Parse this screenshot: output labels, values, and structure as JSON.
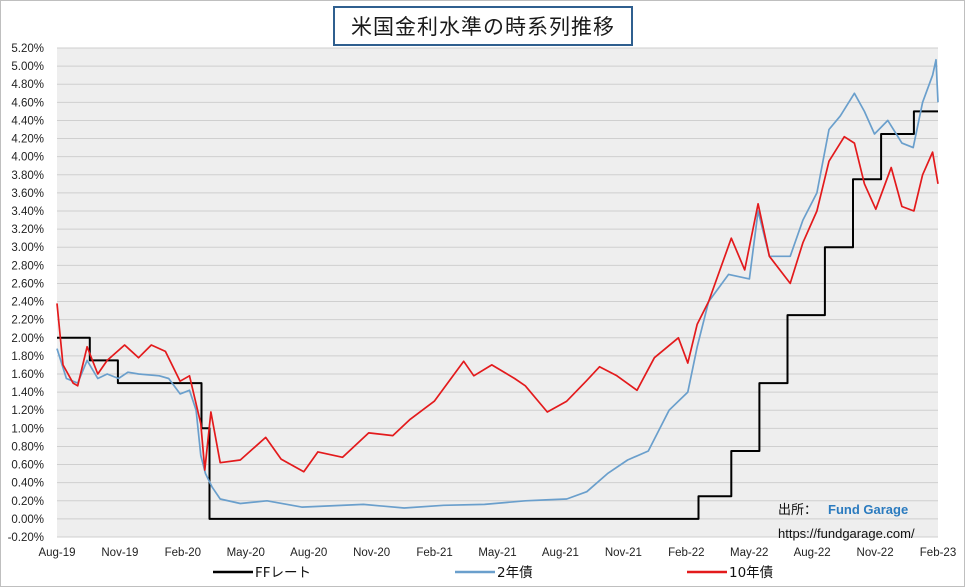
{
  "title": "米国金利水準の時系列推移",
  "source": {
    "prefix": "出所：",
    "name": "Fund Garage",
    "url": "https://fundgarage.com/"
  },
  "chart_data": {
    "type": "line",
    "title": "米国金利水準の時系列推移",
    "x_tick_labels": [
      "Aug-19",
      "Nov-19",
      "Feb-20",
      "May-20",
      "Aug-20",
      "Nov-20",
      "Feb-21",
      "May-21",
      "Aug-21",
      "Nov-21",
      "Feb-22",
      "May-22",
      "Aug-22",
      "Nov-22",
      "Feb-23"
    ],
    "y_tick_labels": [
      "-0.20%",
      "0.00%",
      "0.20%",
      "0.40%",
      "0.60%",
      "0.80%",
      "1.00%",
      "1.20%",
      "1.40%",
      "1.60%",
      "1.80%",
      "2.00%",
      "2.20%",
      "2.40%",
      "2.60%",
      "2.80%",
      "3.00%",
      "3.20%",
      "3.40%",
      "3.60%",
      "3.80%",
      "4.00%",
      "4.20%",
      "4.40%",
      "4.60%",
      "4.80%",
      "5.00%",
      "5.20%"
    ],
    "ylim": [
      -0.2,
      5.2
    ],
    "x_range": [
      "2019-08-01",
      "2023-03-10"
    ],
    "grid": "horizontal",
    "legend_position": "bottom",
    "series": [
      {
        "name": "FFレート",
        "color": "#000000",
        "step": true,
        "points": [
          [
            "2019-08-01",
            2.0
          ],
          [
            "2019-09-19",
            1.75
          ],
          [
            "2019-10-31",
            1.5
          ],
          [
            "2020-03-04",
            1.0
          ],
          [
            "2020-03-16",
            0.0
          ],
          [
            "2022-03-17",
            0.25
          ],
          [
            "2022-05-05",
            0.75
          ],
          [
            "2022-06-16",
            1.5
          ],
          [
            "2022-07-28",
            2.25
          ],
          [
            "2022-09-22",
            3.0
          ],
          [
            "2022-11-03",
            3.75
          ],
          [
            "2022-12-15",
            4.25
          ],
          [
            "2023-02-02",
            4.5
          ],
          [
            "2023-03-10",
            4.5
          ]
        ]
      },
      {
        "name": "2年債",
        "color": "#6a9fcc",
        "points": [
          [
            "2019-08-01",
            1.88
          ],
          [
            "2019-08-15",
            1.55
          ],
          [
            "2019-09-01",
            1.5
          ],
          [
            "2019-09-15",
            1.75
          ],
          [
            "2019-10-01",
            1.55
          ],
          [
            "2019-10-15",
            1.6
          ],
          [
            "2019-11-01",
            1.55
          ],
          [
            "2019-11-15",
            1.62
          ],
          [
            "2019-12-01",
            1.6
          ],
          [
            "2020-01-01",
            1.58
          ],
          [
            "2020-01-15",
            1.55
          ],
          [
            "2020-02-01",
            1.38
          ],
          [
            "2020-02-15",
            1.42
          ],
          [
            "2020-02-25",
            1.2
          ],
          [
            "2020-03-03",
            0.7
          ],
          [
            "2020-03-10",
            0.5
          ],
          [
            "2020-03-20",
            0.35
          ],
          [
            "2020-04-01",
            0.22
          ],
          [
            "2020-05-01",
            0.17
          ],
          [
            "2020-06-10",
            0.2
          ],
          [
            "2020-08-01",
            0.13
          ],
          [
            "2020-11-01",
            0.16
          ],
          [
            "2021-01-01",
            0.12
          ],
          [
            "2021-03-01",
            0.15
          ],
          [
            "2021-05-01",
            0.16
          ],
          [
            "2021-07-01",
            0.2
          ],
          [
            "2021-08-01",
            0.21
          ],
          [
            "2021-09-01",
            0.22
          ],
          [
            "2021-10-01",
            0.3
          ],
          [
            "2021-11-01",
            0.5
          ],
          [
            "2021-12-01",
            0.65
          ],
          [
            "2022-01-01",
            0.75
          ],
          [
            "2022-02-01",
            1.2
          ],
          [
            "2022-03-01",
            1.4
          ],
          [
            "2022-03-15",
            1.9
          ],
          [
            "2022-04-01",
            2.4
          ],
          [
            "2022-05-01",
            2.7
          ],
          [
            "2022-06-01",
            2.65
          ],
          [
            "2022-06-14",
            3.4
          ],
          [
            "2022-07-01",
            2.9
          ],
          [
            "2022-08-01",
            2.9
          ],
          [
            "2022-08-20",
            3.3
          ],
          [
            "2022-09-10",
            3.6
          ],
          [
            "2022-09-28",
            4.3
          ],
          [
            "2022-10-15",
            4.45
          ],
          [
            "2022-11-05",
            4.7
          ],
          [
            "2022-11-20",
            4.5
          ],
          [
            "2022-12-05",
            4.25
          ],
          [
            "2022-12-25",
            4.4
          ],
          [
            "2023-01-15",
            4.15
          ],
          [
            "2023-02-01",
            4.1
          ],
          [
            "2023-02-15",
            4.6
          ],
          [
            "2023-03-02",
            4.9
          ],
          [
            "2023-03-07",
            5.07
          ],
          [
            "2023-03-10",
            4.6
          ]
        ]
      },
      {
        "name": "10年債",
        "color": "#e31a1c",
        "points": [
          [
            "2019-08-01",
            2.38
          ],
          [
            "2019-08-10",
            1.7
          ],
          [
            "2019-08-25",
            1.5
          ],
          [
            "2019-09-01",
            1.47
          ],
          [
            "2019-09-15",
            1.9
          ],
          [
            "2019-10-01",
            1.6
          ],
          [
            "2019-10-15",
            1.75
          ],
          [
            "2019-11-10",
            1.92
          ],
          [
            "2019-12-01",
            1.78
          ],
          [
            "2019-12-20",
            1.92
          ],
          [
            "2020-01-10",
            1.85
          ],
          [
            "2020-02-01",
            1.52
          ],
          [
            "2020-02-15",
            1.58
          ],
          [
            "2020-03-03",
            1.05
          ],
          [
            "2020-03-09",
            0.54
          ],
          [
            "2020-03-18",
            1.18
          ],
          [
            "2020-04-01",
            0.62
          ],
          [
            "2020-05-01",
            0.65
          ],
          [
            "2020-06-08",
            0.9
          ],
          [
            "2020-07-01",
            0.66
          ],
          [
            "2020-08-04",
            0.52
          ],
          [
            "2020-08-25",
            0.74
          ],
          [
            "2020-10-01",
            0.68
          ],
          [
            "2020-11-09",
            0.95
          ],
          [
            "2020-12-15",
            0.92
          ],
          [
            "2021-01-10",
            1.1
          ],
          [
            "2021-02-15",
            1.3
          ],
          [
            "2021-03-31",
            1.74
          ],
          [
            "2021-04-15",
            1.58
          ],
          [
            "2021-05-12",
            1.7
          ],
          [
            "2021-06-15",
            1.55
          ],
          [
            "2021-07-01",
            1.47
          ],
          [
            "2021-08-03",
            1.18
          ],
          [
            "2021-09-01",
            1.3
          ],
          [
            "2021-09-30",
            1.52
          ],
          [
            "2021-10-20",
            1.68
          ],
          [
            "2021-11-15",
            1.58
          ],
          [
            "2021-12-15",
            1.42
          ],
          [
            "2022-01-10",
            1.78
          ],
          [
            "2022-02-15",
            2.0
          ],
          [
            "2022-03-01",
            1.72
          ],
          [
            "2022-03-15",
            2.15
          ],
          [
            "2022-04-01",
            2.4
          ],
          [
            "2022-05-05",
            3.1
          ],
          [
            "2022-05-25",
            2.75
          ],
          [
            "2022-06-14",
            3.48
          ],
          [
            "2022-07-01",
            2.9
          ],
          [
            "2022-08-01",
            2.6
          ],
          [
            "2022-08-20",
            3.05
          ],
          [
            "2022-09-10",
            3.4
          ],
          [
            "2022-09-28",
            3.95
          ],
          [
            "2022-10-21",
            4.22
          ],
          [
            "2022-11-05",
            4.15
          ],
          [
            "2022-11-20",
            3.7
          ],
          [
            "2022-12-07",
            3.42
          ],
          [
            "2022-12-30",
            3.88
          ],
          [
            "2023-01-15",
            3.45
          ],
          [
            "2023-02-02",
            3.4
          ],
          [
            "2023-02-15",
            3.8
          ],
          [
            "2023-03-02",
            4.05
          ],
          [
            "2023-03-10",
            3.7
          ]
        ]
      }
    ]
  }
}
